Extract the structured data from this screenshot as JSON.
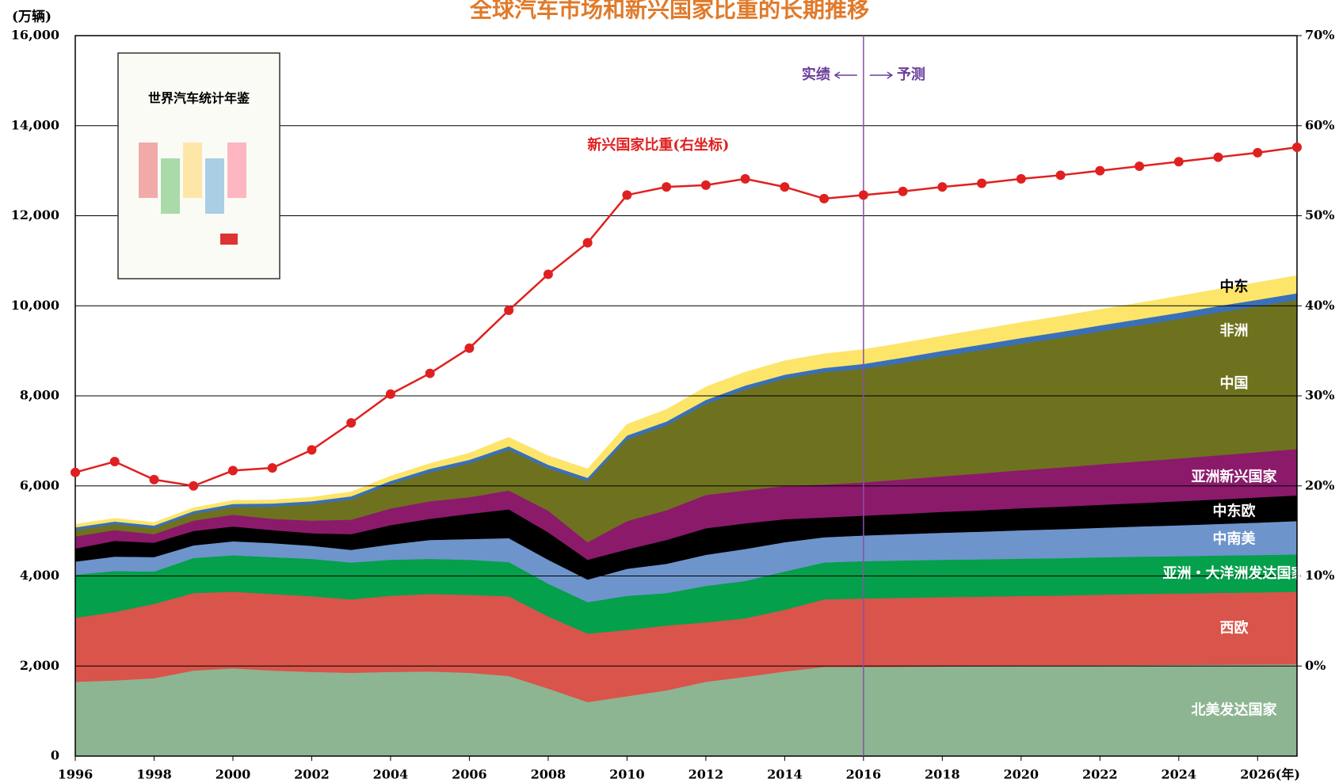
{
  "chart_data": {
    "type": "stacked_area_line",
    "title": "全球汽车市场和新兴国家比重的长期推移",
    "y_label": "(万辆)",
    "annotation_left": "实绩",
    "annotation_right": "予测",
    "forecast_start": 2016,
    "inset_title": "世界汽车统计年鉴",
    "x": [
      1996,
      1997,
      1998,
      1999,
      2000,
      2001,
      2002,
      2003,
      2004,
      2005,
      2006,
      2007,
      2008,
      2009,
      2010,
      2011,
      2012,
      2013,
      2014,
      2015,
      2016,
      2017,
      2018,
      2019,
      2020,
      2021,
      2022,
      2023,
      2024,
      2025,
      2026,
      2027
    ],
    "xlim": [
      1996,
      2027
    ],
    "xticks": [
      1996,
      1998,
      2000,
      2002,
      2004,
      2006,
      2008,
      2010,
      2012,
      2014,
      2016,
      2018,
      2020,
      2022,
      2024,
      {
        "value": 2026,
        "label": "2026(年)"
      }
    ],
    "ylim": [
      0,
      16000
    ],
    "yticks": [
      0,
      {
        "value": 2000,
        "label": "2,000"
      },
      {
        "value": 4000,
        "label": "4,000"
      },
      {
        "value": 6000,
        "label": "6,000"
      },
      {
        "value": 8000,
        "label": "8,000"
      },
      {
        "value": 10000,
        "label": "10,000"
      },
      {
        "value": 12000,
        "label": "12,000"
      },
      {
        "value": 14000,
        "label": "14,000"
      },
      {
        "value": 16000,
        "label": "16,000"
      }
    ],
    "y2lim": [
      -10,
      70
    ],
    "y2ticks": [
      {
        "value": 0,
        "label": "0%"
      },
      {
        "value": 10,
        "label": "10%"
      },
      {
        "value": 20,
        "label": "20%"
      },
      {
        "value": 30,
        "label": "30%"
      },
      {
        "value": 40,
        "label": "40%"
      },
      {
        "value": 50,
        "label": "50%"
      },
      {
        "value": 60,
        "label": "60%"
      },
      {
        "value": 70,
        "label": "70%"
      }
    ],
    "grid": true,
    "series": [
      {
        "name": "北美发达国家",
        "color": "#8db592",
        "values": [
          1650,
          1680,
          1730,
          1900,
          1950,
          1900,
          1870,
          1850,
          1870,
          1880,
          1850,
          1780,
          1500,
          1200,
          1330,
          1460,
          1650,
          1760,
          1880,
          1980,
          1980,
          1985,
          1990,
          1995,
          2000,
          2005,
          2015,
          2020,
          2025,
          2030,
          2035,
          2040
        ]
      },
      {
        "name": "西欧",
        "color": "#d9544a",
        "values": [
          1420,
          1520,
          1650,
          1720,
          1700,
          1700,
          1680,
          1630,
          1690,
          1720,
          1730,
          1770,
          1600,
          1520,
          1470,
          1440,
          1320,
          1300,
          1370,
          1500,
          1520,
          1530,
          1540,
          1545,
          1555,
          1560,
          1570,
          1580,
          1585,
          1595,
          1600,
          1610
        ]
      },
      {
        "name": "亚洲・大洋洲发达国家",
        "color": "#05a04b",
        "values": [
          960,
          910,
          720,
          780,
          810,
          820,
          830,
          820,
          800,
          780,
          780,
          760,
          730,
          700,
          760,
          720,
          810,
          830,
          850,
          820,
          830,
          830,
          830,
          830,
          830,
          830,
          830,
          830,
          830,
          830,
          830,
          830
        ]
      },
      {
        "name": "中南美",
        "color": "#6e94cc",
        "values": [
          290,
          320,
          320,
          280,
          310,
          310,
          290,
          280,
          340,
          420,
          460,
          530,
          530,
          500,
          600,
          650,
          690,
          710,
          650,
          560,
          570,
          585,
          600,
          615,
          630,
          645,
          655,
          670,
          685,
          700,
          720,
          740
        ]
      },
      {
        "name": "中东欧",
        "color": "#000000",
        "values": [
          290,
          350,
          320,
          320,
          330,
          290,
          280,
          350,
          430,
          470,
          560,
          640,
          610,
          440,
          430,
          530,
          590,
          570,
          510,
          440,
          440,
          450,
          465,
          475,
          490,
          500,
          510,
          520,
          535,
          545,
          560,
          570
        ]
      },
      {
        "name": "亚洲新兴国家",
        "color": "#8b1a6b",
        "values": [
          270,
          240,
          190,
          230,
          260,
          250,
          280,
          320,
          370,
          390,
          370,
          420,
          480,
          390,
          630,
          660,
          740,
          730,
          740,
          730,
          740,
          765,
          790,
          820,
          845,
          870,
          900,
          925,
          950,
          980,
          1005,
          1030
        ]
      },
      {
        "name": "中国",
        "color": "#6e721e",
        "values": [
          140,
          130,
          130,
          150,
          170,
          270,
          360,
          450,
          540,
          640,
          750,
          900,
          940,
          1350,
          1810,
          1880,
          2020,
          2240,
          2380,
          2500,
          2520,
          2590,
          2665,
          2735,
          2810,
          2880,
          2950,
          3025,
          3095,
          3170,
          3240,
          3310
        ]
      },
      {
        "name": "非洲",
        "color": "#3a70b8",
        "values": [
          60,
          60,
          60,
          60,
          70,
          70,
          70,
          70,
          70,
          80,
          80,
          80,
          80,
          80,
          90,
          90,
          90,
          90,
          90,
          90,
          110,
          115,
          120,
          125,
          125,
          130,
          135,
          135,
          140,
          145,
          145,
          150
        ]
      },
      {
        "name": "中东",
        "color": "#fde56a",
        "values": [
          70,
          70,
          70,
          75,
          80,
          80,
          90,
          100,
          110,
          120,
          150,
          200,
          200,
          200,
          250,
          270,
          290,
          300,
          310,
          315,
          320,
          325,
          330,
          340,
          345,
          350,
          355,
          360,
          370,
          375,
          385,
          390
        ]
      },
      {
        "name": "新兴国家比重(右坐标)",
        "color": "#e02020",
        "axis": "y2",
        "values": [
          21.5,
          22.7,
          20.7,
          20,
          21.7,
          22,
          24,
          27,
          30.2,
          32.5,
          35.3,
          39.5,
          43.5,
          47,
          52.3,
          53.2,
          53.4,
          54.1,
          53.2,
          51.9,
          52.3,
          52.7,
          53.2,
          53.6,
          54.1,
          54.5,
          55,
          55.5,
          56,
          56.5,
          57,
          57.6
        ]
      }
    ]
  }
}
